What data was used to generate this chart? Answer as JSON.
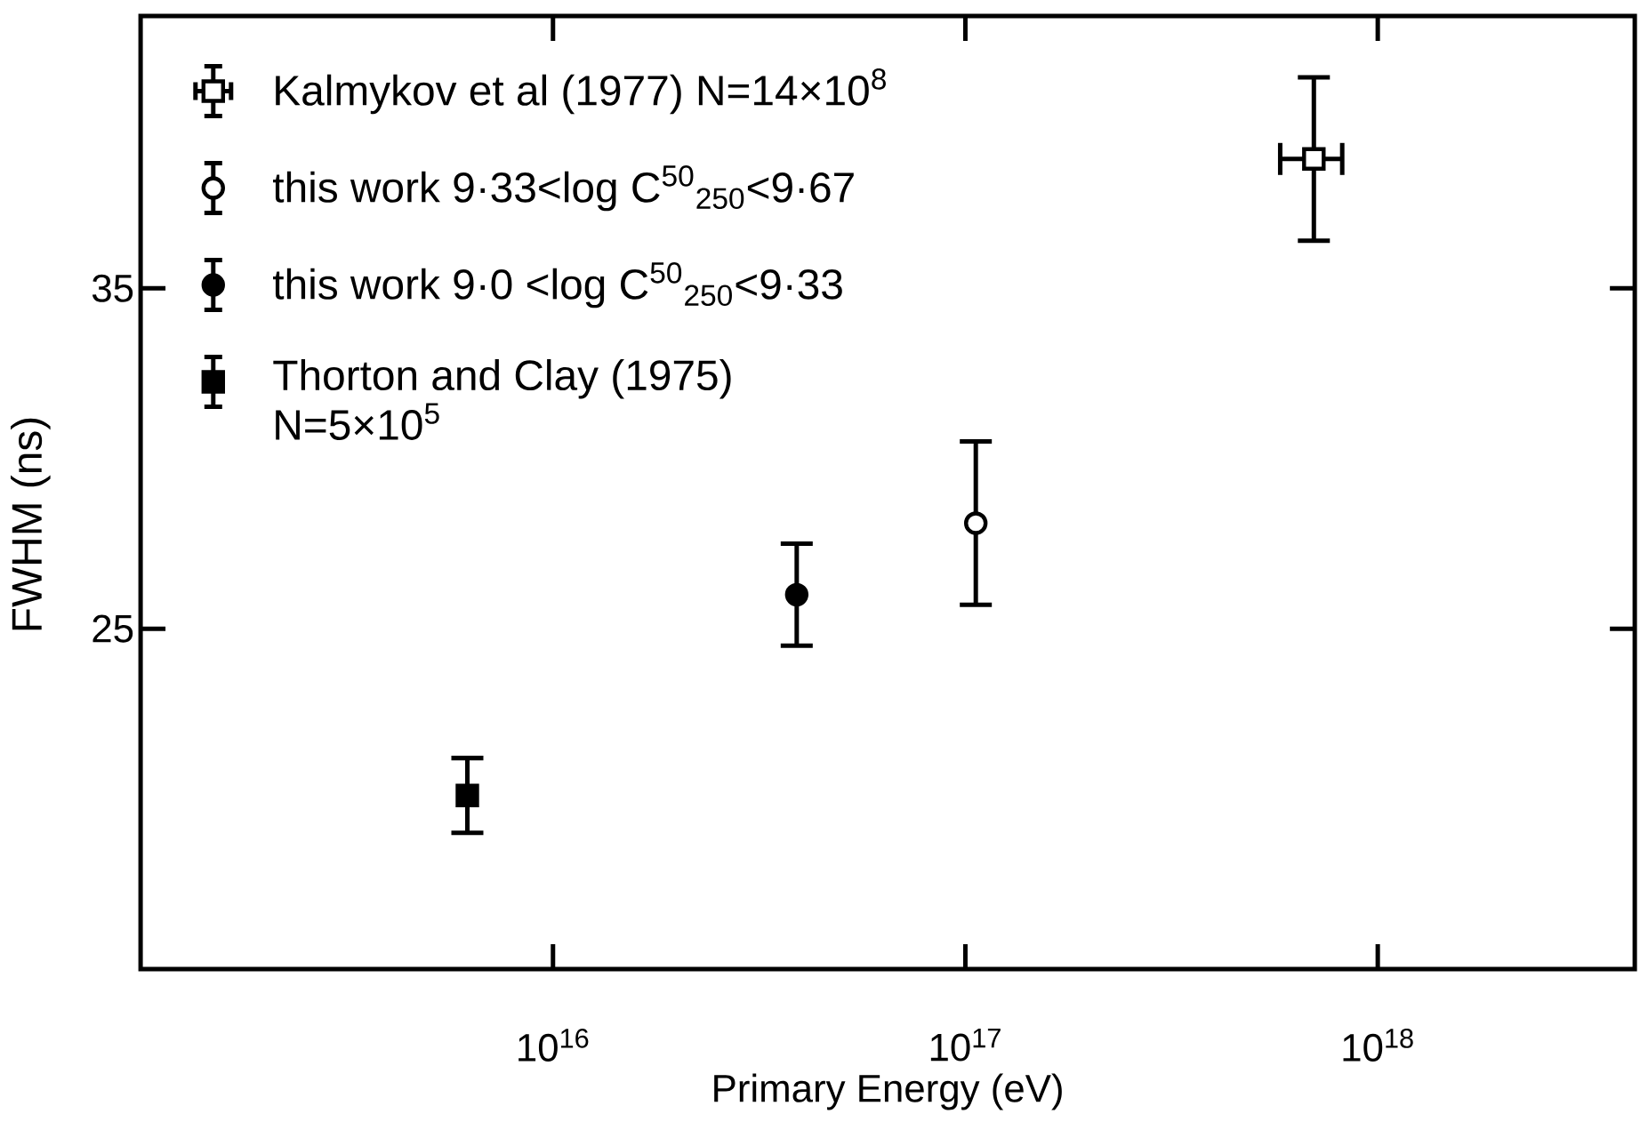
{
  "chart_data": {
    "type": "scatter",
    "xlabel": "Primary Energy (eV)",
    "ylabel": "FWHM (ns)",
    "log": "x",
    "xlim": [
      1000000000000000.0,
      4.2e+18
    ],
    "ylim": [
      15,
      43
    ],
    "xticks": [
      {
        "value": 1e+16,
        "label": "10$^{16}$"
      },
      {
        "value": 1e+17,
        "label": "10$^{17}$"
      },
      {
        "value": 1e+18,
        "label": "10$^{18}$"
      }
    ],
    "yticks": [
      25,
      35
    ],
    "legend": "top left",
    "series": [
      {
        "name": "Kalmykov et al (1977) N=14×10$^{8}$",
        "color": "#000000",
        "marker": "square",
        "x": [
          7e+17
        ],
        "values": [
          38.8
        ],
        "errors": [
          2.4
        ],
        "xerrors": [
          [
            5.8e+17,
            8.2e+17
          ]
        ]
      },
      {
        "name": "this work 9·33<log C$^{50}$$_{250}$<9·67",
        "color": "#000000",
        "marker": "circle",
        "x": [
          1.06e+17
        ],
        "values": [
          28.1
        ],
        "errors": [
          2.4
        ]
      },
      {
        "name": "this work 9·0 <log C$^{50}$$_{250}$<9·33",
        "color": "#000000",
        "marker": "circle",
        "x": [
          3.9e+16
        ],
        "values": [
          26.0
        ],
        "errors": [
          1.5
        ]
      },
      {
        "name": "Thorton and Clay (1975) N=5×10$^{5}$",
        "color": "#000000",
        "marker": "square",
        "x": [
          6200000000000000.0
        ],
        "values": [
          20.1
        ],
        "errors": [
          1.1
        ]
      }
    ]
  }
}
